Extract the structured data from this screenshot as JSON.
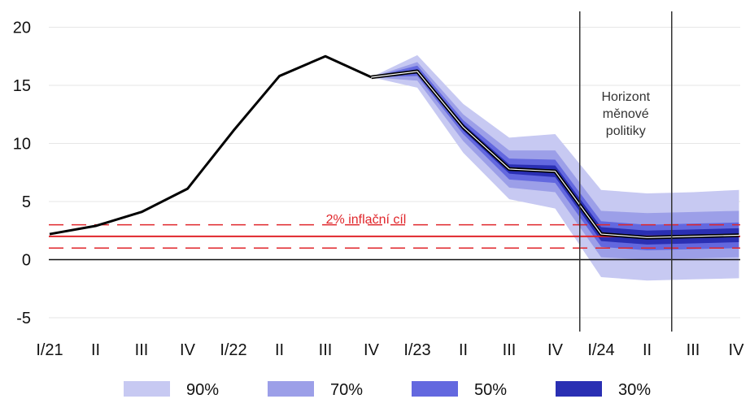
{
  "chart_data": {
    "type": "line",
    "x": [
      "I/21",
      "II",
      "III",
      "IV",
      "I/22",
      "II",
      "III",
      "IV",
      "I/23",
      "II",
      "III",
      "IV",
      "I/24",
      "II",
      "III",
      "IV"
    ],
    "ylim": [
      -5,
      20
    ],
    "yticks": [
      -5,
      0,
      5,
      10,
      15,
      20
    ],
    "grid": true,
    "series": [
      {
        "name": "",
        "values": [
          2.2,
          2.9,
          4.1,
          6.1,
          11.1,
          15.8,
          17.5,
          15.7,
          16.2,
          11.4,
          7.8,
          7.6,
          2.2,
          1.9,
          2.0,
          2.1
        ]
      }
    ],
    "fan": {
      "start_index": 7,
      "bands": [
        {
          "label": "90%",
          "color": "#c7c9f2",
          "upper": [
            15.7,
            17.6,
            13.4,
            10.5,
            10.8,
            6.0,
            5.7,
            5.8,
            6.0
          ],
          "lower": [
            15.7,
            14.8,
            9.2,
            5.2,
            4.4,
            -1.5,
            -1.8,
            -1.7,
            -1.6
          ]
        },
        {
          "label": "70%",
          "color": "#9c9fe8",
          "upper": [
            15.7,
            17.0,
            12.5,
            9.4,
            9.4,
            4.2,
            4.0,
            4.1,
            4.2
          ],
          "lower": [
            15.7,
            15.4,
            10.2,
            6.2,
            5.8,
            0.2,
            0.0,
            0.1,
            0.2
          ]
        },
        {
          "label": "50%",
          "color": "#6368df",
          "upper": [
            15.7,
            16.7,
            12.0,
            8.7,
            8.6,
            3.3,
            3.0,
            3.1,
            3.2
          ],
          "lower": [
            15.7,
            15.8,
            10.8,
            6.9,
            6.6,
            1.1,
            0.8,
            0.9,
            1.0
          ]
        },
        {
          "label": "30%",
          "color": "#2a2fb3",
          "upper": [
            15.7,
            16.4,
            11.7,
            8.2,
            8.1,
            2.8,
            2.5,
            2.6,
            2.7
          ],
          "lower": [
            15.7,
            16.0,
            11.1,
            7.4,
            7.1,
            1.6,
            1.3,
            1.4,
            1.5
          ]
        }
      ]
    },
    "reference_lines": {
      "target": 2,
      "tolerance_upper": 3,
      "tolerance_lower": 1,
      "zero": 0,
      "target_color": "#e0262b"
    },
    "target_label": "2% inflační cíl",
    "horizon_label": [
      "Horizont",
      "měnové",
      "politiky"
    ],
    "horizon_lines_after_index": [
      11.5,
      13.5
    ],
    "legend": {
      "placement": "bottom",
      "items": [
        {
          "label": "90%",
          "color": "#c7c9f2"
        },
        {
          "label": "70%",
          "color": "#9c9fe8"
        },
        {
          "label": "50%",
          "color": "#6368df"
        },
        {
          "label": "30%",
          "color": "#2a2fb3"
        }
      ]
    }
  }
}
